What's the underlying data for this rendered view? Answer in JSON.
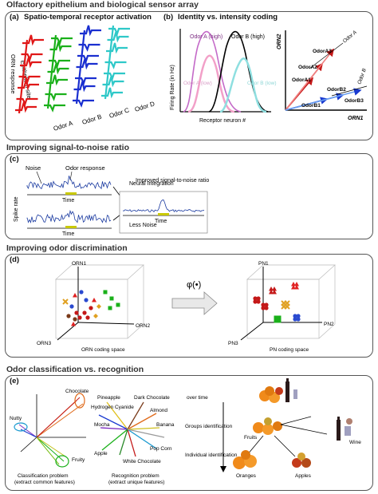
{
  "sections": {
    "s1": "Olfactory epithelium and biological sensor array",
    "s2": "Improving signal-to-noise ratio",
    "s3": "Improving odor discrimination",
    "s4": "Odor classification vs. recognition"
  },
  "panel_a": {
    "tag": "(a)",
    "title": "Spatio-temporal receptor activation",
    "ylabel_top": "ORN response",
    "ylabel_bottom": "Epithelium site",
    "odors": [
      "Odor A",
      "Odor B",
      "Odor C",
      "Odor D"
    ],
    "colors": [
      "#e01818",
      "#1ab01a",
      "#1a2fd0",
      "#2ec8c8"
    ]
  },
  "panel_b": {
    "tag": "(b)",
    "title": "Identity vs. intensity coding",
    "ylabel": "Firing Rate (in Hz)",
    "xlabel": "Receptor neuron #",
    "curve_labels": [
      "Odor A (high)",
      "Odor B (high)",
      "Odor A (low)",
      "Odor B (low)"
    ],
    "vector_labels": [
      "Odor A",
      "Odor B",
      "OdorA1",
      "OdorA2",
      "OdorA3",
      "OdorB1",
      "OdorB2",
      "OdorB3"
    ],
    "axis_orn1": "ORN1",
    "axis_orn2": "ORN2"
  },
  "panel_c": {
    "tag": "(c)",
    "noise": "Noise",
    "odor_response": "Odor response",
    "time": "Time",
    "neural_integration": "Neural Integration",
    "improved": "Improved signal-to-noise ratio",
    "less_noise": "Less Noise",
    "spike_rate": "Spike rate"
  },
  "panel_d": {
    "tag": "(d)",
    "orn_axes": [
      "ORN1",
      "ORN2",
      "ORN3"
    ],
    "pn_axes": [
      "PN1",
      "PN2",
      "PN3"
    ],
    "arrow_label": "φ(•)",
    "orn_caption": "ORN coding space",
    "pn_caption": "PN coding space"
  },
  "panel_e": {
    "tag": "(e)",
    "class_labels": [
      "Chocolate",
      "Nutty",
      "Fruity"
    ],
    "class_caption_1": "Classification problem",
    "class_caption_2": "(extract common features)",
    "recog_labels": [
      "Pineapple",
      "Dark Chocolate",
      "Hydrogen Cyanide",
      "Almond",
      "Mocha",
      "Banana",
      "Apple",
      "Pop Corn",
      "White Chocolate"
    ],
    "recog_caption_1": "Recognition problem",
    "recog_caption_2": "(extract unique features)",
    "over_time": "over time",
    "groups_identification": "Groups identification",
    "individual_identification": "Individual identification",
    "fruits": "Fruits",
    "wine": "Wine",
    "oranges": "Oranges",
    "apples": "Apples"
  }
}
